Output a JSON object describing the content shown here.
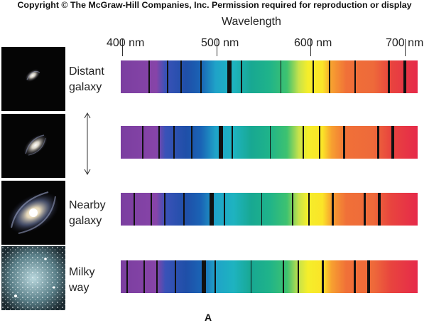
{
  "copyright": "Copyright © The McGraw-Hill Companies, Inc. Permission required for reproduction or display",
  "axis": {
    "title": "Wavelength",
    "ticks": [
      "400 nm",
      "500 nm",
      "600 nm",
      "700 nm"
    ]
  },
  "rows": [
    {
      "label_line1": "Distant",
      "label_line2": "galaxy"
    },
    {
      "label_line1": "",
      "label_line2": ""
    },
    {
      "label_line1": "Nearby",
      "label_line2": "galaxy"
    },
    {
      "label_line1": "Milky",
      "label_line2": "way"
    }
  ],
  "figure_label": "A"
}
